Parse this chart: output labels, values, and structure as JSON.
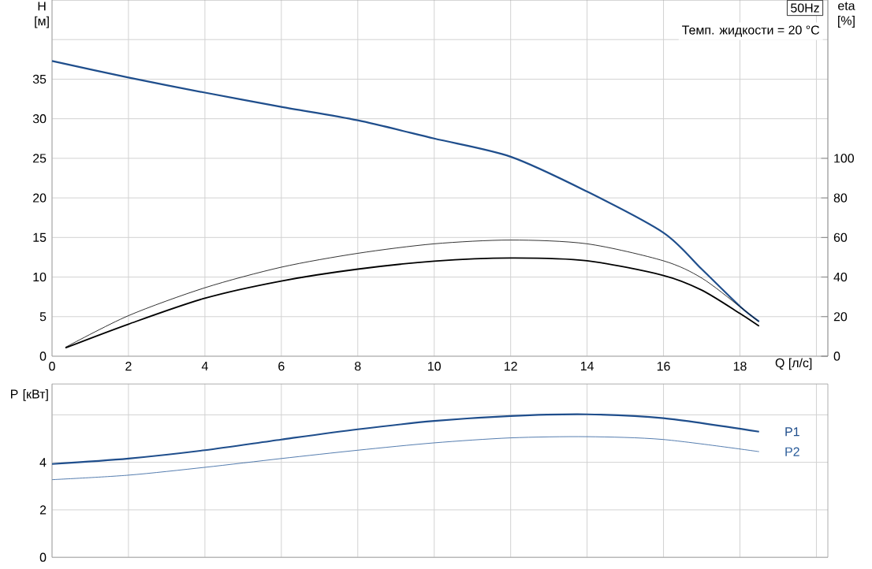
{
  "chart_data": [
    {
      "type": "line",
      "xlabel": "Q [л/с]",
      "ylabel": "H [м]",
      "y2label": "eta [%]",
      "annotations": [
        "50Hz",
        "Темп. жидкости = 20 °C"
      ],
      "xlim": [
        0,
        20.3
      ],
      "xticks": [
        0,
        2,
        4,
        6,
        8,
        10,
        12,
        14,
        16,
        18,
        {
          "value": 20,
          "label": null
        }
      ],
      "ylim": [
        0,
        45
      ],
      "yticks": [
        0,
        5,
        10,
        15,
        20,
        25,
        30,
        35,
        {
          "value": 40,
          "label": null
        }
      ],
      "y2lim": [
        0,
        180
      ],
      "y2ticks": [
        0,
        20,
        40,
        60,
        80,
        100
      ],
      "grid": true,
      "series": [
        {
          "color": "#1f4e8c",
          "x": [
            0,
            2,
            4,
            6,
            8,
            10,
            12,
            14,
            16,
            17,
            18,
            18.5
          ],
          "values": [
            37.3,
            35.2,
            33.3,
            31.5,
            29.8,
            27.5,
            25.2,
            20.8,
            15.6,
            11.0,
            6.3,
            4.4
          ]
        },
        {
          "color": "#000000",
          "axis": "y2",
          "x": [
            0.35,
            2,
            4,
            6,
            8,
            10,
            12,
            14,
            16,
            17,
            18,
            18.5
          ],
          "values": [
            4.2,
            16.2,
            29.3,
            38,
            44,
            48,
            49.6,
            48.2,
            40.8,
            33.4,
            21.6,
            15.2
          ]
        },
        {
          "color": "#000000",
          "axis": "y2",
          "x": [
            0.35,
            2,
            4,
            6,
            8,
            10,
            12,
            14,
            16,
            17,
            18,
            18.5
          ],
          "values": [
            4.5,
            20.5,
            34.6,
            45,
            52,
            56.8,
            58.7,
            56.8,
            48.2,
            39.5,
            25,
            17.3
          ]
        }
      ]
    },
    {
      "type": "line",
      "ylabel": "P [кВт]",
      "tick_labels": "y",
      "xlim": [
        0,
        20.3
      ],
      "xticks": [
        0,
        2,
        4,
        6,
        8,
        10,
        12,
        14,
        16,
        18,
        {
          "value": 20,
          "label": null
        }
      ],
      "ylim": [
        0,
        7.3
      ],
      "yticks": [
        0,
        2,
        4,
        {
          "value": 6,
          "label": null
        }
      ],
      "grid": true,
      "series": [
        {
          "name": "P1",
          "color": "#1f4e8c",
          "x": [
            0,
            2,
            4,
            6,
            8,
            10,
            12,
            14,
            16,
            18.5
          ],
          "values": [
            3.93,
            4.16,
            4.51,
            4.96,
            5.39,
            5.74,
            5.95,
            6.02,
            5.86,
            5.29
          ]
        },
        {
          "name": "P2",
          "color": "#2a5c9a",
          "x": [
            0,
            2,
            4,
            6,
            8,
            10,
            12,
            14,
            16,
            18.5
          ],
          "values": [
            3.27,
            3.46,
            3.79,
            4.16,
            4.51,
            4.82,
            5.03,
            5.08,
            4.96,
            4.45
          ]
        }
      ]
    }
  ]
}
